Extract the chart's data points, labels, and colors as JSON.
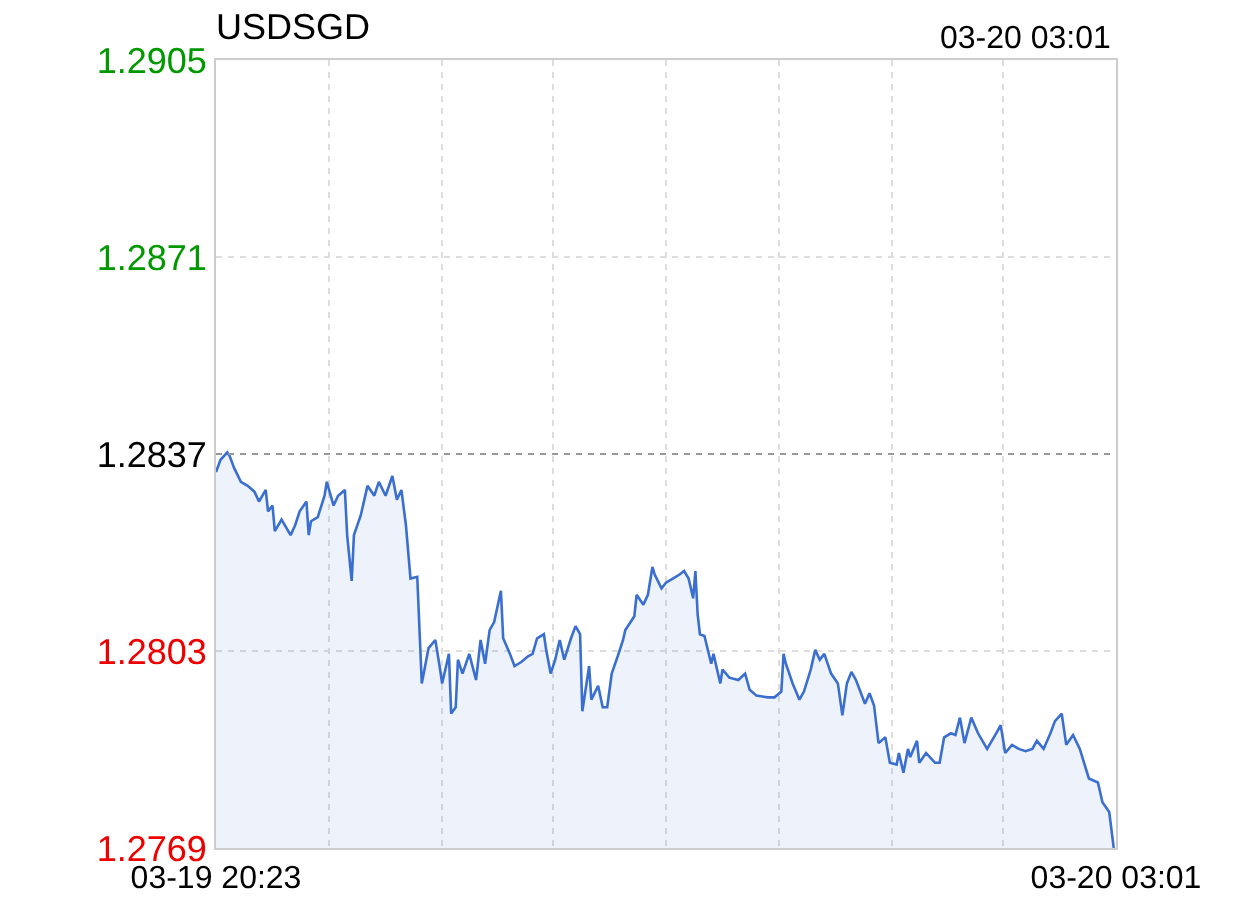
{
  "chart_data": {
    "type": "area",
    "title": "USDSGD",
    "annotations": [
      "03-20 03:01"
    ],
    "x": [
      "--03-19T20:23",
      "--03-19T20:25",
      "--03-19T20:28",
      "--03-19T20:29",
      "--03-19T20:31",
      "--03-19T20:34",
      "--03-19T20:37",
      "--03-19T20:40",
      "--03-19T20:42",
      "--03-19T20:45",
      "--03-19T20:46",
      "--03-19T20:48",
      "--03-19T20:49",
      "--03-19T20:52",
      "--03-19T20:56",
      "--03-19T20:58",
      "--03-19T21:00",
      "--03-19T21:03",
      "--03-19T21:04",
      "--03-19T21:05",
      "--03-19T21:08",
      "--03-19T21:11",
      "--03-19T21:12",
      "--03-19T21:15",
      "--03-19T21:17",
      "--03-19T21:20",
      "--03-19T21:21",
      "--03-19T21:23",
      "--03-19T21:24",
      "--03-19T21:27",
      "--03-19T21:30",
      "--03-19T21:33",
      "--03-19T21:35",
      "--03-19T21:38",
      "--03-19T21:41",
      "--03-19T21:43",
      "--03-19T21:45",
      "--03-19T21:47",
      "--03-19T21:49",
      "--03-19T21:52",
      "--03-19T21:54",
      "--03-19T21:57",
      "--03-19T22:00",
      "--03-19T22:02",
      "--03-19T22:03",
      "--03-19T22:06",
      "--03-19T22:07",
      "--03-19T22:09",
      "--03-19T22:10",
      "--03-19T22:12",
      "--03-19T22:15",
      "--03-19T22:18",
      "--03-19T22:20",
      "--03-19T22:22",
      "--03-19T22:24",
      "--03-19T22:26",
      "--03-19T22:29",
      "--03-19T22:30",
      "--03-19T22:33",
      "--03-19T22:35",
      "--03-19T22:38",
      "--03-19T22:41",
      "--03-19T22:43",
      "--03-19T22:45",
      "--03-19T22:48",
      "--03-19T22:49",
      "--03-19T22:51",
      "--03-19T22:53",
      "--03-19T22:55",
      "--03-19T22:57",
      "--03-19T23:00",
      "--03-19T23:02",
      "--03-19T23:04",
      "--03-19T23:05",
      "--03-19T23:08",
      "--03-19T23:09",
      "--03-19T23:12",
      "--03-19T23:14",
      "--03-19T23:16",
      "--03-19T23:18",
      "--03-19T23:21",
      "--03-19T23:23",
      "--03-19T23:24",
      "--03-19T23:28",
      "--03-19T23:29",
      "--03-19T23:32",
      "--03-19T23:34",
      "--03-19T23:36",
      "--03-19T23:37",
      "--03-19T23:40",
      "--03-19T23:42",
      "--03-19T23:45",
      "--03-19T23:48",
      "--03-19T23:50",
      "--03-19T23:52",
      "--03-19T23:54",
      "--03-19T23:55",
      "--03-19T23:56",
      "--03-19T23:57",
      "--03-19T23:59",
      "--03-20T00:02",
      "--03-20T00:03",
      "--03-20T00:06",
      "--03-20T00:07",
      "--03-20T00:10",
      "--03-20T00:14",
      "--03-20T00:17",
      "--03-20T00:19",
      "--03-20T00:22",
      "--03-20T00:27",
      "--03-20T00:30",
      "--03-20T00:33",
      "--03-20T00:34",
      "--03-20T00:35",
      "--03-20T00:38",
      "--03-20T00:41",
      "--03-20T00:43",
      "--03-20T00:46",
      "--03-20T00:48",
      "--03-20T00:50",
      "--03-20T00:52",
      "--03-20T00:55",
      "--03-20T00:58",
      "--03-20T01:00",
      "--03-20T01:02",
      "--03-20T01:04",
      "--03-20T01:06",
      "--03-20T01:10",
      "--03-20T01:12",
      "--03-20T01:14",
      "--03-20T01:16",
      "--03-20T01:19",
      "--03-20T01:21",
      "--03-20T01:24",
      "--03-20T01:25",
      "--03-20T01:27",
      "--03-20T01:29",
      "--03-20T01:30",
      "--03-20T01:33",
      "--03-20T01:34",
      "--03-20T01:37",
      "--03-20T01:41",
      "--03-20T01:43",
      "--03-20T01:45",
      "--03-20T01:48",
      "--03-20T01:50",
      "--03-20T01:52",
      "--03-20T01:54",
      "--03-20T01:57",
      "--03-20T02:00",
      "--03-20T02:04",
      "--03-20T02:08",
      "--03-20T02:10",
      "--03-20T02:12",
      "--03-20T02:15",
      "--03-20T02:18",
      "--03-20T02:21",
      "--03-20T02:24",
      "--03-20T02:26",
      "--03-20T02:29",
      "--03-20T02:32",
      "--03-20T02:34",
      "--03-20T02:37",
      "--03-20T02:39",
      "--03-20T02:42",
      "--03-20T02:45",
      "--03-20T02:49",
      "--03-20T02:53",
      "--03-20T02:55",
      "--03-20T02:58",
      "--03-20T03:00"
    ],
    "series": [
      {
        "color": "#3b6fcf",
        "values": [
          1.28339,
          1.2836,
          1.28373,
          1.28367,
          1.28346,
          1.28322,
          1.28315,
          1.28305,
          1.28288,
          1.28308,
          1.28271,
          1.28281,
          1.28237,
          1.28257,
          1.2823,
          1.28247,
          1.28271,
          1.28288,
          1.2823,
          1.28254,
          1.28261,
          1.28298,
          1.28322,
          1.28281,
          1.28298,
          1.28308,
          1.2823,
          1.28151,
          1.2823,
          1.28264,
          1.28315,
          1.28298,
          1.28322,
          1.28298,
          1.28332,
          1.28291,
          1.28308,
          1.28247,
          1.28155,
          1.28158,
          1.27974,
          1.28035,
          1.28049,
          1.28001,
          1.27974,
          1.28025,
          1.27922,
          1.27933,
          1.28015,
          1.27991,
          1.28025,
          1.2798,
          1.28049,
          1.28008,
          1.28066,
          1.2808,
          1.28134,
          1.28052,
          1.28025,
          1.28004,
          1.28011,
          1.28021,
          1.28025,
          1.28052,
          1.28059,
          1.28032,
          1.27991,
          1.28015,
          1.28049,
          1.28015,
          1.28052,
          1.28073,
          1.28059,
          1.27926,
          1.28004,
          1.27946,
          1.2797,
          1.27933,
          1.27933,
          1.27991,
          1.28025,
          1.28049,
          1.28066,
          1.2809,
          1.28127,
          1.2811,
          1.28127,
          1.28175,
          1.28162,
          1.28138,
          1.28148,
          1.28155,
          1.28162,
          1.28168,
          1.28155,
          1.28121,
          1.28168,
          1.28093,
          1.28059,
          1.28056,
          1.28008,
          1.28025,
          1.27974,
          1.27998,
          1.27984,
          1.2798,
          1.27991,
          1.27963,
          1.27953,
          1.2795,
          1.2795,
          1.2796,
          1.28025,
          1.28008,
          1.27974,
          1.27946,
          1.2796,
          1.27998,
          1.28032,
          1.28015,
          1.28025,
          1.27991,
          1.27974,
          1.27919,
          1.27974,
          1.27994,
          1.2798,
          1.27939,
          1.27957,
          1.27936,
          1.27871,
          1.27881,
          1.27837,
          1.27834,
          1.27854,
          1.2782,
          1.27861,
          1.27847,
          1.27875,
          1.27837,
          1.27854,
          1.27837,
          1.27837,
          1.27881,
          1.27888,
          1.27885,
          1.27915,
          1.27871,
          1.27915,
          1.27888,
          1.27861,
          1.27888,
          1.27902,
          1.27854,
          1.27868,
          1.27861,
          1.27857,
          1.27861,
          1.27875,
          1.27861,
          1.27888,
          1.27909,
          1.27922,
          1.27868,
          1.27885,
          1.27861,
          1.2781,
          1.27803,
          1.27769,
          1.27752,
          1.2769
        ]
      }
    ],
    "xlim": [
      "--03-19T20:23",
      "--03-20T03:01"
    ],
    "xticks": [
      {
        "value": "--03-19T20:23",
        "label": "03-19 20:23"
      },
      {
        "value": "--03-19T21:13",
        "label": null
      },
      {
        "value": "--03-19T22:03",
        "label": null
      },
      {
        "value": "--03-19T22:52",
        "label": null
      },
      {
        "value": "--03-19T23:42",
        "label": null
      },
      {
        "value": "--03-20T00:32",
        "label": null
      },
      {
        "value": "--03-20T01:22",
        "label": null
      },
      {
        "value": "--03-20T02:11",
        "label": null
      },
      {
        "value": "--03-20T03:01",
        "label": "03-20 03:01"
      }
    ],
    "ylim": [
      1.2769,
      1.2905
    ],
    "yticks": [
      1.2769,
      1.2803,
      1.2837,
      1.2871,
      1.2905
    ],
    "ref_lines": [
      {
        "axis": "y",
        "value": 1.2837,
        "color": "#999999",
        "line_style": "dotted"
      }
    ],
    "grid": true
  }
}
